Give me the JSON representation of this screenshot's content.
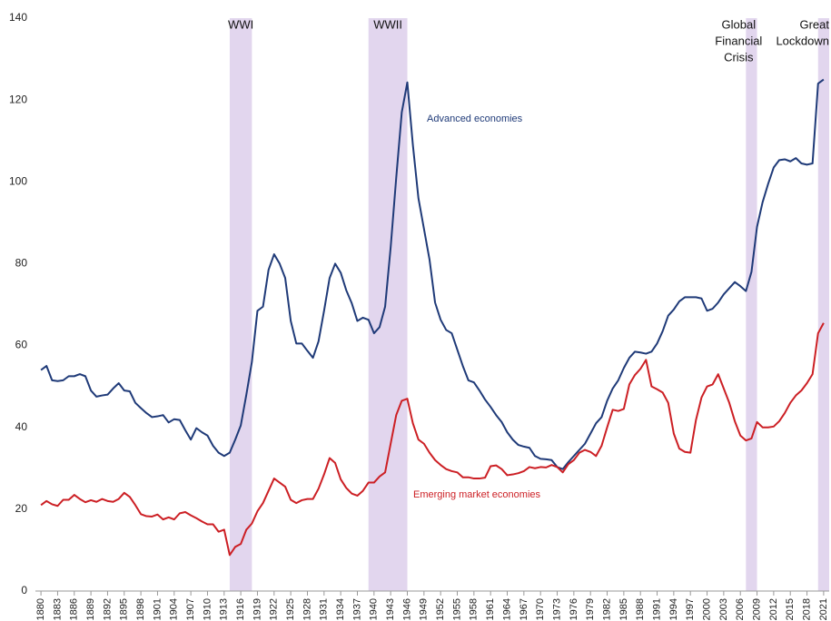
{
  "chart_data": {
    "type": "line",
    "x": [
      1880,
      1881,
      1882,
      1883,
      1884,
      1885,
      1886,
      1887,
      1888,
      1889,
      1890,
      1891,
      1892,
      1893,
      1894,
      1895,
      1896,
      1897,
      1898,
      1899,
      1900,
      1901,
      1902,
      1903,
      1904,
      1905,
      1906,
      1907,
      1908,
      1909,
      1910,
      1911,
      1912,
      1913,
      1914,
      1915,
      1916,
      1917,
      1918,
      1919,
      1920,
      1921,
      1922,
      1923,
      1924,
      1925,
      1926,
      1927,
      1928,
      1929,
      1930,
      1931,
      1932,
      1933,
      1934,
      1935,
      1936,
      1937,
      1938,
      1939,
      1940,
      1941,
      1942,
      1943,
      1944,
      1945,
      1946,
      1947,
      1948,
      1949,
      1950,
      1951,
      1952,
      1953,
      1954,
      1955,
      1956,
      1957,
      1958,
      1959,
      1960,
      1961,
      1962,
      1963,
      1964,
      1965,
      1966,
      1967,
      1968,
      1969,
      1970,
      1971,
      1972,
      1973,
      1974,
      1975,
      1976,
      1977,
      1978,
      1979,
      1980,
      1981,
      1982,
      1983,
      1984,
      1985,
      1986,
      1987,
      1988,
      1989,
      1990,
      1991,
      1992,
      1993,
      1994,
      1995,
      1996,
      1997,
      1998,
      1999,
      2000,
      2001,
      2002,
      2003,
      2004,
      2005,
      2006,
      2007,
      2008,
      2009,
      2010,
      2011,
      2012,
      2013,
      2014,
      2015,
      2016,
      2017,
      2018,
      2019,
      2020,
      2021
    ],
    "series": [
      {
        "name": "Advanced economies",
        "color": "#1f3a78",
        "values": [
          54,
          55,
          51.5,
          51.3,
          51.5,
          52.5,
          52.5,
          53,
          52.5,
          49,
          47.5,
          47.8,
          48,
          49.5,
          50.8,
          49,
          48.8,
          46,
          44.7,
          43.5,
          42.5,
          42.7,
          43,
          41.2,
          42,
          41.8,
          39.3,
          37,
          39.8,
          38.8,
          38,
          35.5,
          33.8,
          33,
          33.8,
          37,
          40.5,
          48,
          56,
          68.5,
          69.5,
          78.5,
          82.3,
          80,
          76.5,
          66,
          60.5,
          60.5,
          58.7,
          57,
          61,
          68.5,
          76.5,
          80,
          77.8,
          73.5,
          70.3,
          66,
          66.8,
          66.3,
          63,
          64.5,
          69.5,
          84,
          101,
          117,
          124.3,
          109,
          96,
          88.5,
          81,
          70.5,
          66.3,
          63.8,
          63,
          59,
          55,
          51.5,
          51,
          49,
          46.8,
          45,
          43,
          41.3,
          38.8,
          37,
          35.7,
          35.3,
          35,
          33,
          32.3,
          32.2,
          32,
          30.3,
          29.8,
          31.5,
          33,
          34.5,
          36,
          38.5,
          41,
          42.5,
          46.5,
          49.5,
          51.5,
          54.5,
          57,
          58.5,
          58.3,
          58,
          58.5,
          60.5,
          63.5,
          67.3,
          68.8,
          70.8,
          71.8,
          71.8,
          71.8,
          71.5,
          68.5,
          69,
          70.5,
          72.5,
          74,
          75.5,
          74.5,
          73.3,
          78,
          89,
          95,
          99.5,
          103.5,
          105.3,
          105.5,
          105,
          105.8,
          104.5,
          104.2,
          104.5,
          124,
          125
        ]
      },
      {
        "name": "Emerging market economies",
        "color": "#cc1f24",
        "values": [
          21,
          22,
          21.2,
          20.8,
          22.3,
          22.3,
          23.5,
          22.5,
          21.7,
          22.2,
          21.8,
          22.5,
          22,
          21.8,
          22.5,
          24,
          23,
          21,
          18.8,
          18.3,
          18.2,
          18.7,
          17.5,
          18,
          17.5,
          19,
          19.3,
          18.5,
          17.8,
          17,
          16.3,
          16.3,
          14.5,
          15,
          8.8,
          10.8,
          11.5,
          15,
          16.5,
          19.5,
          21.5,
          24.5,
          27.5,
          26.5,
          25.5,
          22.3,
          21.5,
          22.2,
          22.5,
          22.5,
          25,
          28.5,
          32.5,
          31.3,
          27.3,
          25.2,
          23.8,
          23.3,
          24.5,
          26.5,
          26.5,
          28,
          29,
          36,
          43,
          46.5,
          47,
          41,
          37,
          36,
          33.8,
          32,
          30.8,
          29.8,
          29.3,
          29,
          27.8,
          27.8,
          27.5,
          27.5,
          27.7,
          30.5,
          30.7,
          29.8,
          28.3,
          28.5,
          28.8,
          29.3,
          30.3,
          30,
          30.3,
          30.2,
          30.8,
          30.3,
          29,
          31,
          32,
          33.8,
          34.5,
          34,
          33,
          35.5,
          40,
          44.3,
          44,
          44.5,
          50.5,
          52.8,
          54.3,
          56.5,
          50,
          49.3,
          48.5,
          46,
          38.5,
          34.8,
          34,
          33.8,
          41.8,
          47.3,
          50,
          50.5,
          53,
          49.5,
          46,
          41.5,
          38,
          36.8,
          37.3,
          41.3,
          40,
          40,
          40.2,
          41.5,
          43.5,
          46,
          47.8,
          49,
          50.8,
          53,
          63,
          65.5
        ]
      }
    ],
    "periods": [
      {
        "label": [
          "WWI"
        ],
        "start": 1914,
        "end": 1918
      },
      {
        "label": [
          "WWII"
        ],
        "start": 1939,
        "end": 1946
      },
      {
        "label": [
          "Global",
          "Financial",
          "Crisis"
        ],
        "start": 2007,
        "end": 2009
      },
      {
        "label": [
          "Great",
          "Lockdown"
        ],
        "start": 2020,
        "end": 2022
      }
    ],
    "period_color": "#e2d6ee",
    "xlim": [
      1879,
      2022
    ],
    "xticks": [
      1880,
      1883,
      1886,
      1889,
      1892,
      1895,
      1898,
      1901,
      1904,
      1907,
      1910,
      1913,
      1916,
      1919,
      1922,
      1925,
      1928,
      1931,
      1934,
      1937,
      1940,
      1943,
      1946,
      1949,
      1952,
      1955,
      1958,
      1961,
      1964,
      1967,
      1970,
      1973,
      1976,
      1979,
      1982,
      1985,
      1988,
      1991,
      1994,
      1997,
      2000,
      2003,
      2006,
      2009,
      2012,
      2015,
      2018,
      2021
    ],
    "ylim": [
      0,
      140
    ],
    "yticks": [
      0,
      20,
      40,
      60,
      80,
      100,
      120,
      140
    ],
    "grid": false
  }
}
